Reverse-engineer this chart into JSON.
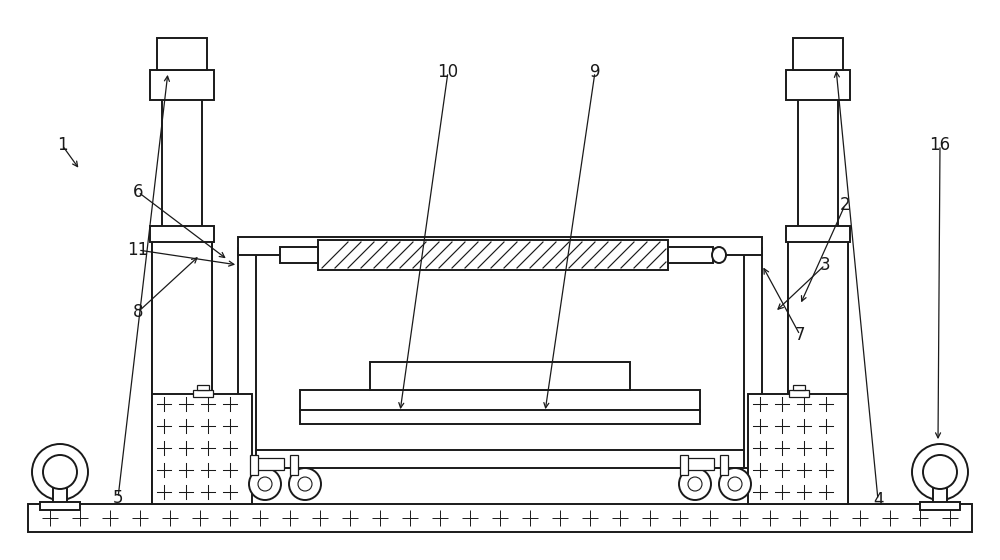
{
  "bg_color": "#ffffff",
  "lc": "#1a1a1a",
  "lw": 1.4,
  "figsize": [
    10.0,
    5.6
  ],
  "dpi": 100,
  "annotations": [
    [
      "1",
      62,
      415,
      80,
      390
    ],
    [
      "2",
      845,
      355,
      800,
      255
    ],
    [
      "3",
      825,
      295,
      775,
      248
    ],
    [
      "4",
      878,
      60,
      836,
      492
    ],
    [
      "5",
      118,
      62,
      168,
      488
    ],
    [
      "6",
      138,
      368,
      228,
      300
    ],
    [
      "7",
      800,
      225,
      762,
      295
    ],
    [
      "8",
      138,
      248,
      200,
      305
    ],
    [
      "9",
      595,
      488,
      545,
      148
    ],
    [
      "10",
      448,
      488,
      400,
      148
    ],
    [
      "11",
      138,
      310,
      238,
      295
    ],
    [
      "16",
      940,
      415,
      938,
      118
    ]
  ]
}
